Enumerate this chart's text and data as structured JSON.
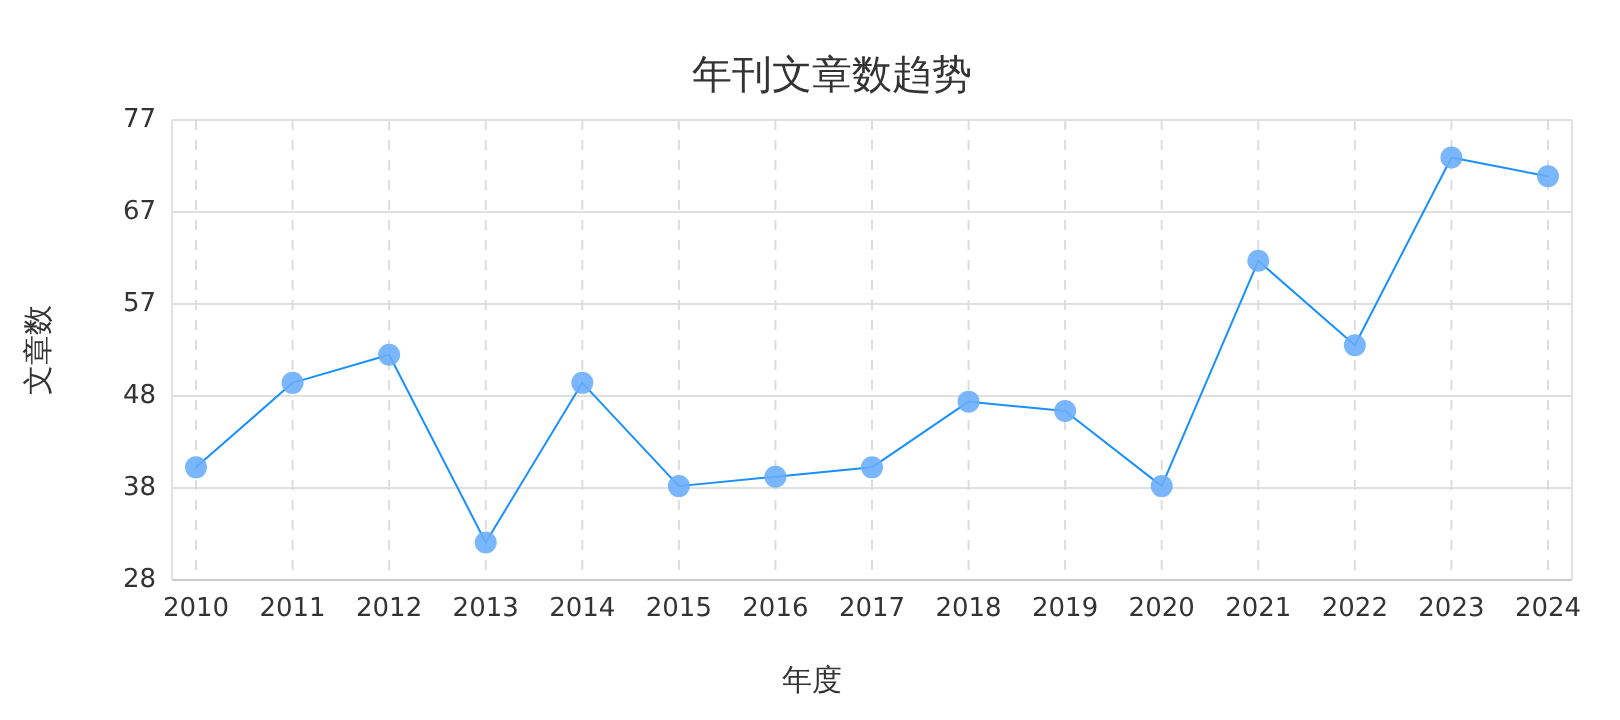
{
  "chart_data": {
    "type": "line",
    "title": "年刊文章数趋势",
    "xlabel": "年度",
    "ylabel": "文章数",
    "categories": [
      "2010",
      "2011",
      "2012",
      "2013",
      "2014",
      "2015",
      "2016",
      "2017",
      "2018",
      "2019",
      "2020",
      "2021",
      "2022",
      "2023",
      "2024"
    ],
    "series": [
      {
        "color": "#1890ff",
        "values": [
          40,
          49,
          52,
          32,
          49,
          38,
          39,
          40,
          47,
          46,
          38,
          62,
          53,
          73,
          71
        ]
      }
    ],
    "ylim": [
      28,
      77
    ],
    "yticks": [
      28,
      {
        "value": 37.8,
        "label": "38"
      },
      {
        "value": 47.6,
        "label": "48"
      },
      {
        "value": 57.4,
        "label": "57"
      },
      {
        "value": 67.2,
        "label": "67"
      },
      77
    ],
    "grid": true,
    "marker": "circle",
    "line_style": "solid"
  }
}
